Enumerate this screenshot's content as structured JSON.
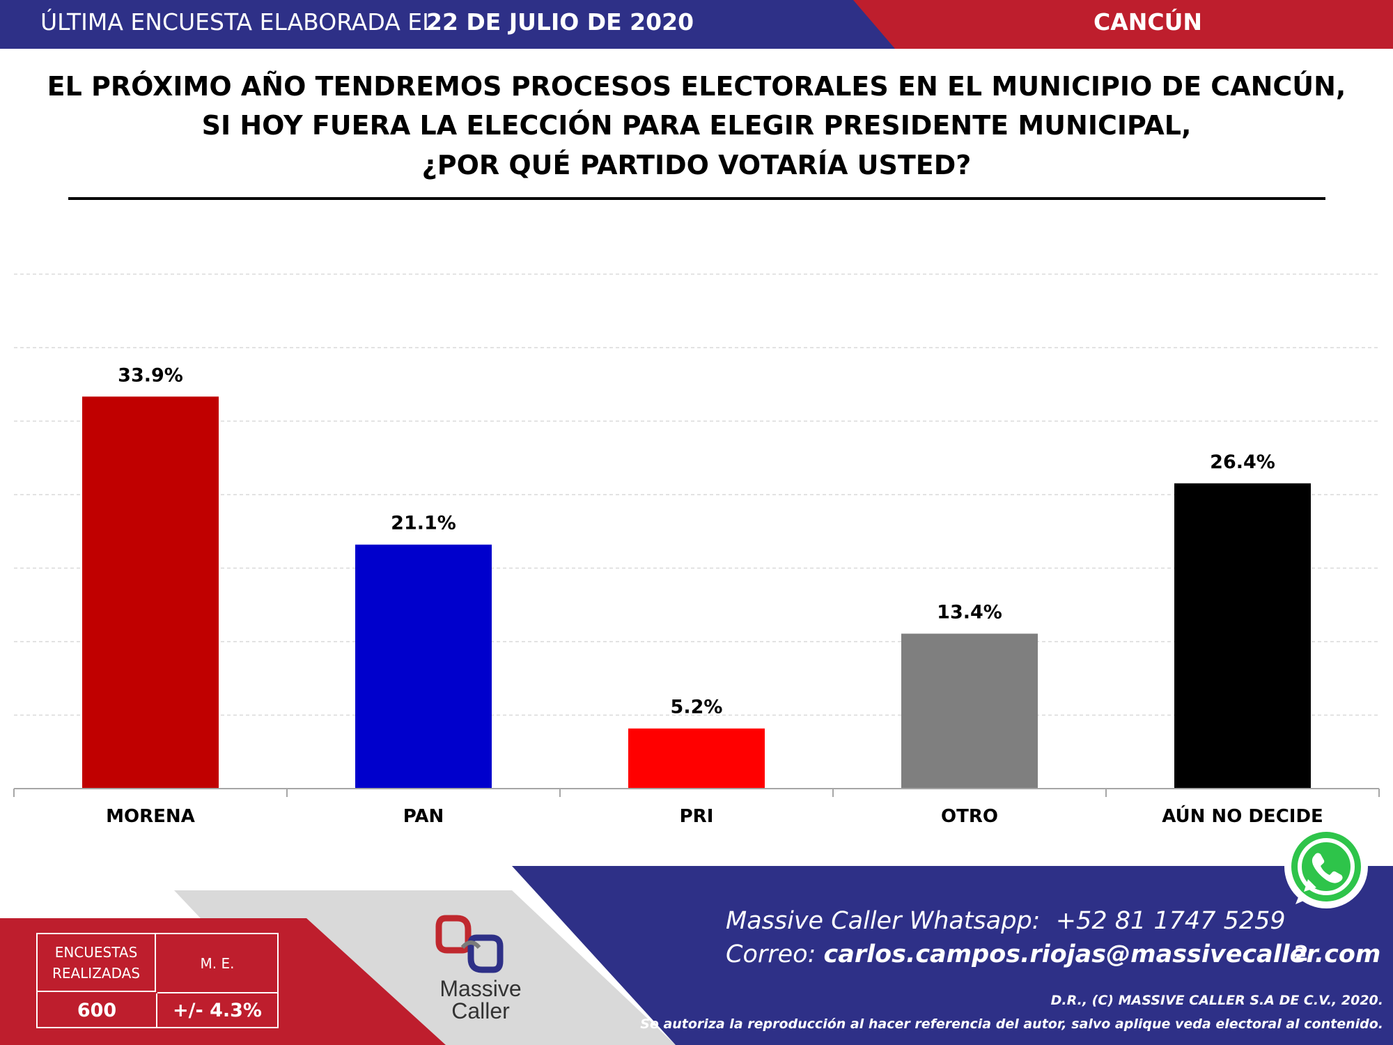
{
  "header": {
    "prefix": "ÚLTIMA ENCUESTA ELABORADA EL",
    "date": "22 DE JULIO DE 2020",
    "city": "CANCÚN"
  },
  "question": {
    "line1": "EL PRÓXIMO AÑO TENDREMOS PROCESOS ELECTORALES EN EL MUNICIPIO DE CANCÚN,",
    "line2": "SI HOY FUERA LA ELECCIÓN PARA ELEGIR PRESIDENTE MUNICIPAL,",
    "line3": "¿POR QUÉ PARTIDO VOTARÍA USTED?"
  },
  "chart_data": {
    "type": "bar",
    "categories": [
      "MORENA",
      "PAN",
      "PRI",
      "OTRO",
      "AÚN NO DECIDE"
    ],
    "values": [
      33.9,
      21.1,
      5.2,
      13.4,
      26.4
    ],
    "value_labels": [
      "33.9%",
      "21.1%",
      "5.2%",
      "13.4%",
      "26.4%"
    ],
    "colors": [
      "#c00000",
      "#0000cc",
      "#ff0000",
      "#7f7f7f",
      "#000000"
    ],
    "ylim": [
      0,
      40
    ],
    "grid": true,
    "legend": "none"
  },
  "footer": {
    "whatsapp_label": "Massive Caller Whatsapp:",
    "whatsapp_number": "+52 81 1747 5259",
    "email_label": "Correo:",
    "email": "carlos.campos.riojas@massivecaller.com",
    "page_number": "2",
    "legal1": "D.R., (C) MASSIVE CALLER S.A DE C.V., 2020.",
    "legal2": "Se autoriza la reproducción al hacer referencia del autor, salvo aplique veda electoral al contenido.",
    "logo_line1": "Massive",
    "logo_line2": "Caller",
    "whatsapp_icon": "whatsapp-icon"
  },
  "stats": {
    "surveys_label": "ENCUESTAS REALIZADAS",
    "surveys_value": "600",
    "me_label": "M. E.",
    "me_value": "+/- 4.3%"
  },
  "theme": {
    "blue": "#2e3087",
    "red": "#be1e2d",
    "gray": "#d9d9d9"
  }
}
